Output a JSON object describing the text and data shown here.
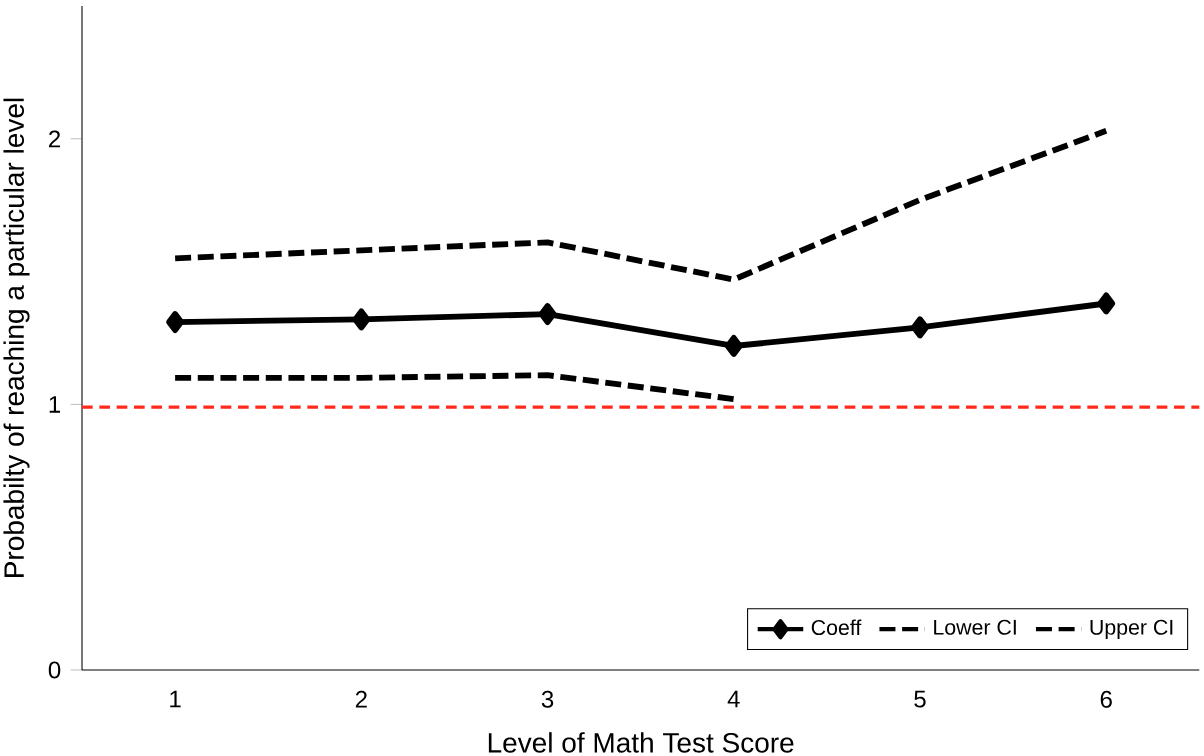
{
  "chart_data": {
    "type": "line",
    "xlabel": "Level of Math Test Score",
    "ylabel": "Probabilty of reaching a particular level",
    "categories": [
      "1",
      "2",
      "3",
      "4",
      "5",
      "6"
    ],
    "series": [
      {
        "name": "Coeff",
        "color": "#000000",
        "values": [
          1.31,
          1.32,
          1.34,
          1.22,
          1.29,
          1.38
        ],
        "marker": "diamond",
        "line_style": "solid"
      },
      {
        "name": "Lower CI",
        "color": "#000000",
        "values": [
          1.1,
          1.1,
          1.11,
          1.02,
          null,
          null
        ],
        "marker": "none",
        "line_style": "dashed"
      },
      {
        "name": "Upper CI",
        "color": "#000000",
        "values": [
          1.55,
          1.58,
          1.61,
          1.47,
          1.77,
          2.03
        ],
        "marker": "none",
        "line_style": "dashed"
      }
    ],
    "ylim": [
      0,
      2.5
    ],
    "yticks": [
      0,
      1,
      2
    ],
    "grid": false,
    "legend": "bottom right",
    "ref_lines": [
      {
        "axis": "y",
        "value": 0.99,
        "color": "#ff2a1a",
        "line_style": "dashed"
      }
    ]
  }
}
